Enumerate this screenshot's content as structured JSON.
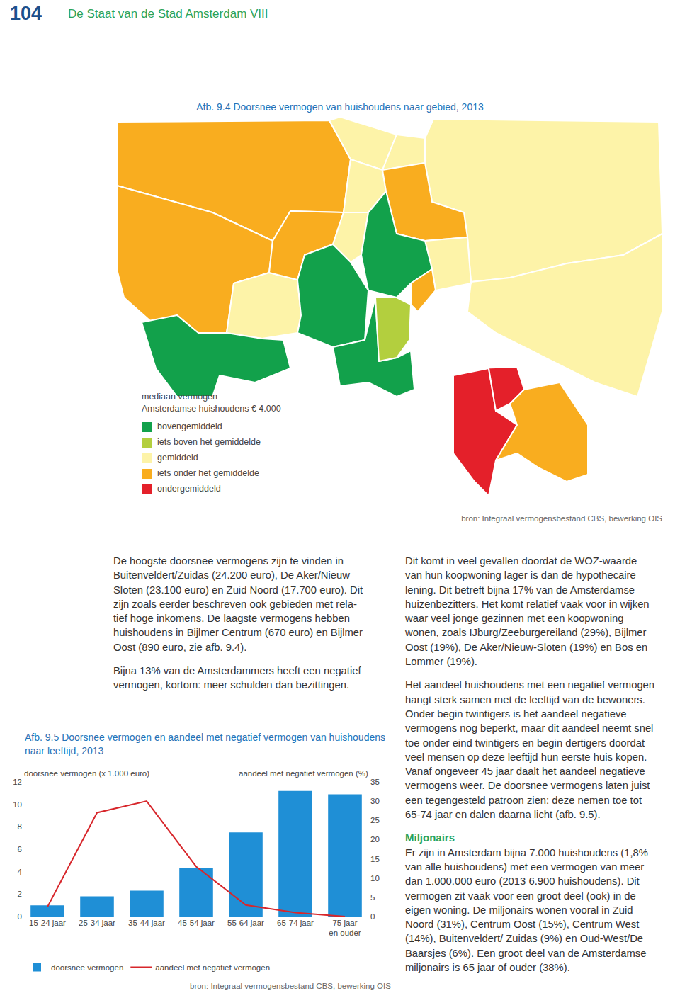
{
  "header": {
    "page": "104",
    "title": "De Staat van de Stad Amsterdam VIII"
  },
  "figure_9_4": {
    "title": "Afb. 9.4 Doorsnee vermogen van huishoudens naar gebied, 2013",
    "legend_title": [
      "mediaan vermogen",
      "Amsterdamse huishoudens € 4.000"
    ],
    "legend": [
      {
        "label": "bovengemiddeld",
        "color": "#12a14b"
      },
      {
        "label": "iets boven het gemiddelde",
        "color": "#b3cf3e"
      },
      {
        "label": "gemiddeld",
        "color": "#fdf3a8"
      },
      {
        "label": "iets onder het gemiddelde",
        "color": "#f9ad1f"
      },
      {
        "label": "ondergemiddeld",
        "color": "#e4202a"
      }
    ],
    "regions": [
      2,
      2,
      3,
      3,
      2,
      0,
      3,
      2,
      2,
      2,
      2,
      3,
      2,
      0,
      0,
      0,
      1,
      3,
      4,
      4,
      3
    ],
    "source": "bron: Integraal vermogensbestand CBS, bewerking OIS"
  },
  "text_left": {
    "paragraphs": [
      [
        "De hoogste doorsnee vermogens zijn te vinden in",
        "Buitenveldert/Zuidas (24.200 euro), De Aker/Nieuw",
        "Sloten (23.100 euro) en Zuid Noord (17.700 euro). Dit",
        "zijn zoals eerder beschreven ook gebieden met rela-",
        "tief hoge inkomens. De laagste vermogens hebben",
        "huishoudens in Bijlmer Centrum (670 euro) en Bijlmer",
        "Oost (890 euro, zie afb. 9.4)."
      ],
      [
        "Bijna 13% van de Amsterdammers heeft een negatief",
        "vermogen, kortom: meer schulden dan bezittingen."
      ]
    ]
  },
  "text_right": {
    "paragraphs": [
      [
        "Dit komt in veel gevallen doordat de WOZ-waarde",
        "van hun koopwoning lager is dan de hypothecaire",
        "lening. Dit betreft bijna 17% van de Amsterdamse",
        "huizenbezitters. Het komt relatief vaak voor in wijken",
        "waar veel jonge gezinnen met een koopwoning",
        "wonen, zoals IJburg/Zeeburgereiland (29%), Bijlmer",
        "Oost (19%), De Aker/Nieuw-Sloten (19%) en Bos en",
        "Lommer (19%)."
      ],
      [
        "Het aandeel huishoudens met een negatief vermogen",
        "hangt sterk samen met de leeftijd van de bewoners.",
        "Onder begin twintigers is het aandeel negatieve",
        "vermogens nog beperkt, maar dit aandeel neemt snel",
        "toe onder eind twintigers en begin dertigers doordat",
        "veel mensen op deze leeftijd hun eerste huis kopen.",
        "Vanaf ongeveer 45 jaar daalt het aandeel negatieve",
        "vermogens weer. De doorsnee vermogens laten juist",
        "een tegengesteld patroon zien: deze nemen toe tot",
        "65-74 jaar en dalen daarna licht (afb. 9.5)."
      ]
    ],
    "heading": "Miljonairs",
    "paragraphs_after": [
      [
        "Er zijn in Amsterdam bijna 7.000 huishoudens (1,8%",
        "van alle huishoudens) met een vermogen van meer",
        "dan 1.000.000 euro (2013 6.900 huishoudens). Dit",
        "vermogen zit vaak voor een groot deel (ook) in de",
        "eigen woning. De miljonairs wonen vooral in Zuid",
        "Noord (31%), Centrum Oost (15%), Centrum West",
        "(14%), Buitenveldert/ Zuidas (9%) en Oud-West/De",
        "Baarsjes (6%). Een groot deel van de Amsterdamse",
        "miljonairs is 65 jaar of ouder (38%)."
      ]
    ]
  },
  "chart_data": {
    "type": "bar",
    "title": "Afb. 9.5 Doorsnee vermogen en aandeel met negatief vermogen van huishoudens naar leeftijd, 2013",
    "ylabel": "doorsnee vermogen (x 1.000 euro)",
    "y2label": "aandeel met negatief vermogen (%)",
    "categories": [
      "15-24 jaar",
      "25-34 jaar",
      "35-44 jaar",
      "45-54 jaar",
      "55-64 jaar",
      "65-74 jaar",
      "75 jaar\nen ouder"
    ],
    "series": [
      {
        "name": "doorsnee vermogen",
        "type": "bar",
        "color": "#1f8fd6",
        "values": [
          1.0,
          1.8,
          2.3,
          4.3,
          7.5,
          11.2,
          10.9
        ]
      },
      {
        "name": "aandeel met negatief vermogen",
        "type": "line",
        "color": "#d7262b",
        "axis": "y2",
        "values": [
          2.5,
          27,
          30,
          13,
          3,
          1,
          0
        ]
      }
    ],
    "ylim": [
      0,
      12
    ],
    "yticks": [
      0,
      2,
      4,
      6,
      8,
      10,
      12
    ],
    "y2lim": [
      0,
      35
    ],
    "y2ticks": [
      0,
      5,
      10,
      15,
      20,
      25,
      30,
      35
    ],
    "grid": false,
    "legend": "bottom",
    "source": "bron: Integraal vermogensbestand CBS, bewerking OIS"
  }
}
